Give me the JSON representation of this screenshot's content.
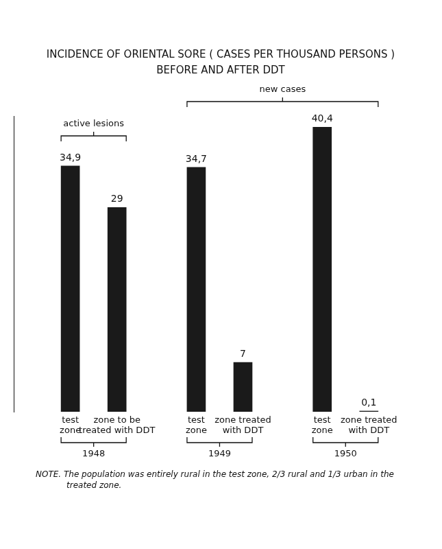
{
  "chart_data": {
    "type": "bar",
    "title": [
      "INCIDENCE OF ORIENTAL SORE ( CASES PER THOUSAND PERSONS )",
      "BEFORE AND AFTER DDT"
    ],
    "categories": [
      [
        "test",
        "zone"
      ],
      [
        "zone to be",
        "treated with DDT"
      ],
      [
        "test",
        "zone"
      ],
      [
        "zone treated",
        "with DDT"
      ],
      [
        "test",
        "zone"
      ],
      [
        "zone treated",
        "with DDT"
      ]
    ],
    "values": [
      34.9,
      29,
      34.7,
      7,
      40.4,
      0.1
    ],
    "value_labels": [
      "34,9",
      "29",
      "34,7",
      "7",
      "40,4",
      "0,1"
    ],
    "data_labels": true,
    "color": "#1a1a1a",
    "ylim": [
      0,
      42
    ],
    "grid": false,
    "tick_labels": "x",
    "groups": [
      {
        "label": "1948",
        "categories": [
          0,
          1
        ]
      },
      {
        "label": "1949",
        "categories": [
          2,
          3
        ]
      },
      {
        "label": "1950",
        "categories": [
          4,
          5
        ]
      }
    ],
    "annotations": [
      {
        "text": "active lesions",
        "categories": [
          0,
          1
        ]
      },
      {
        "text": "new cases",
        "categories": [
          2,
          5
        ]
      }
    ],
    "note": "NOTE. The population was entirely rural in the test zone, 2/3 rural and 1/3 urban in the treated zone."
  }
}
